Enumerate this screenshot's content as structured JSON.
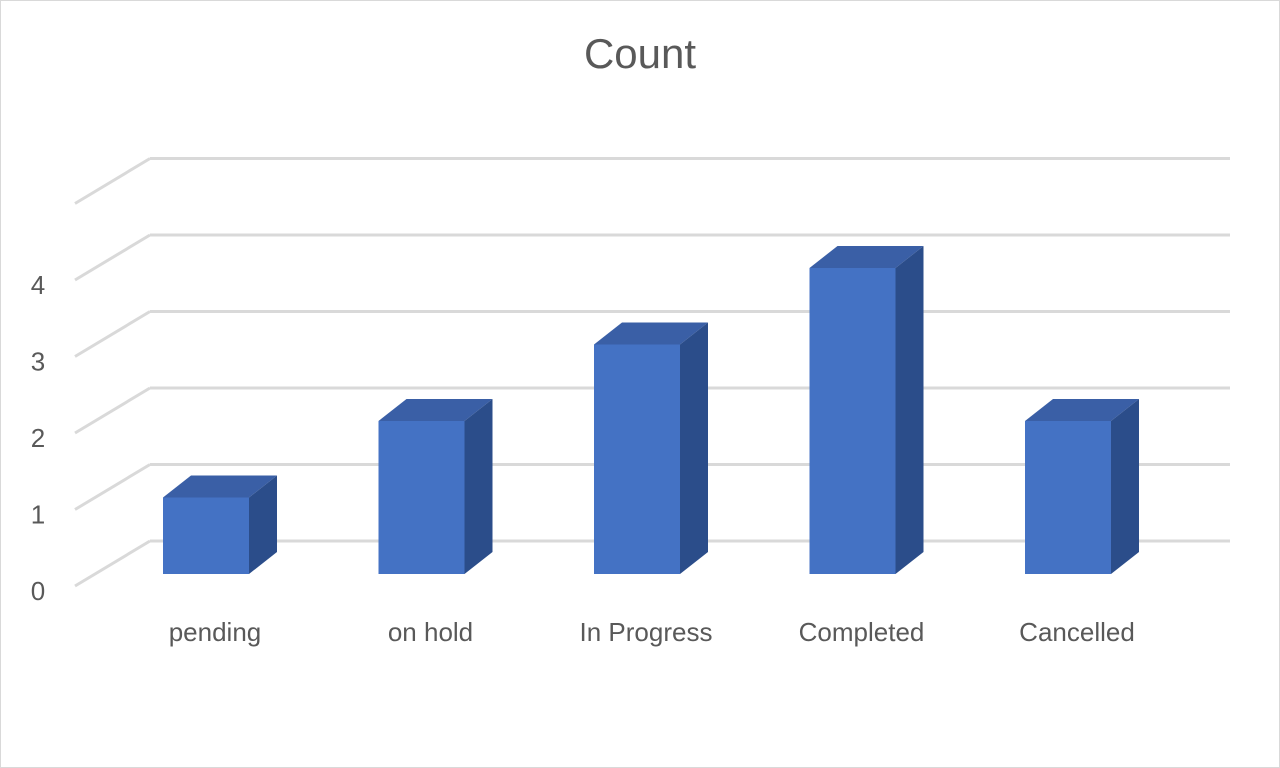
{
  "chart_data": {
    "type": "bar",
    "title": "Count",
    "categories": [
      "pending",
      "on hold",
      "In Progress",
      "Completed",
      "Cancelled"
    ],
    "values": [
      1,
      2,
      3,
      4,
      2
    ],
    "xlabel": "",
    "ylabel": "",
    "ylim": [
      0,
      4
    ],
    "yticks": [
      0,
      1,
      2,
      3,
      4
    ],
    "grid": true,
    "legend": "none",
    "colors": {
      "bar_front": "#4472c4",
      "bar_side": "#2b4d8a",
      "bar_top": "#3a5fa6",
      "grid": "#d9d9d9"
    }
  }
}
